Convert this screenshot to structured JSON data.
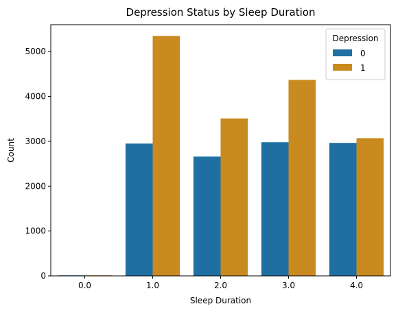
{
  "chart_data": {
    "type": "bar",
    "title": "Depression Status by Sleep Duration",
    "xlabel": "Sleep Duration",
    "ylabel": "Count",
    "categories": [
      "0.0",
      "1.0",
      "2.0",
      "3.0",
      "4.0"
    ],
    "series": [
      {
        "name": "0",
        "values": [
          12,
          2950,
          2660,
          2980,
          2965
        ],
        "color": "#1f6fa2"
      },
      {
        "name": "1",
        "values": [
          6,
          5350,
          3510,
          4370,
          3070
        ],
        "color": "#c98a1f"
      }
    ],
    "ylim": [
      0,
      5600
    ],
    "yticks": [
      0,
      1000,
      2000,
      3000,
      4000,
      5000
    ],
    "grid": false,
    "legend": {
      "title": "Depression",
      "position": "top-right"
    }
  }
}
